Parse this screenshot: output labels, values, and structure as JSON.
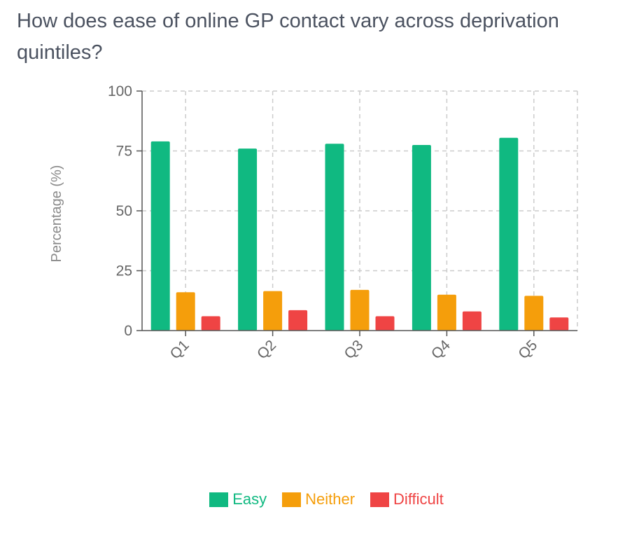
{
  "title": "How does ease of online GP contact vary across deprivation quintiles?",
  "chart_data": {
    "type": "bar",
    "categories": [
      "Q1",
      "Q2",
      "Q3",
      "Q4",
      "Q5"
    ],
    "series": [
      {
        "name": "Easy",
        "color": "#10b981",
        "values": [
          79,
          76,
          78,
          77.5,
          80.5
        ]
      },
      {
        "name": "Neither",
        "color": "#f59e0b",
        "values": [
          16,
          16.5,
          17,
          15,
          14.5
        ]
      },
      {
        "name": "Difficult",
        "color": "#ef4444",
        "values": [
          6,
          8.5,
          6,
          8,
          5.5
        ]
      }
    ],
    "ylabel": "Percentage (%)",
    "ylim": [
      0,
      100
    ],
    "yticks": [
      0,
      25,
      50,
      75,
      100
    ],
    "grid": true,
    "legend_position": "bottom"
  }
}
